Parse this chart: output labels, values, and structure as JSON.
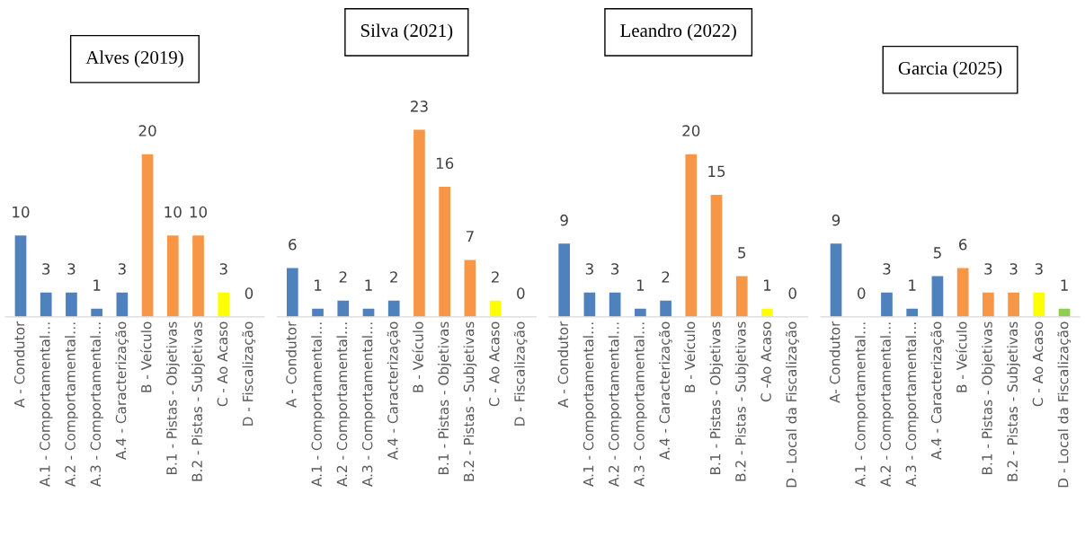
{
  "chart_data": [
    {
      "type": "bar",
      "title": "Alves (2019)",
      "categories": [
        "A - Condutor",
        "A.1 - Comportamental…",
        "A.2 - Comportamental…",
        "A.3 - Comportamental…",
        "A.4 - Caracterização",
        "B - Veículo",
        "B.1 - Pistas - Objetivas",
        "B.2 - Pistas - Subjetivas",
        "C - Ao Acaso",
        "D - Fiscalização"
      ],
      "values": [
        10,
        3,
        3,
        1,
        3,
        20,
        10,
        10,
        3,
        0
      ],
      "colors": [
        "#4f81bd",
        "#4f81bd",
        "#4f81bd",
        "#4f81bd",
        "#4f81bd",
        "#f79646",
        "#f79646",
        "#f79646",
        "#ffff00",
        "#8fce4f"
      ],
      "data_labels": true,
      "tick_labels": "x",
      "grid": false,
      "legend": false
    },
    {
      "type": "bar",
      "title": "Silva (2021)",
      "categories": [
        "A - Condutor",
        "A.1 - Comportamental…",
        "A.2 - Comportamental…",
        "A.3 - Comportamental…",
        "A.4 - Caracterização",
        "B - Veículo",
        "B.1 - Pistas - Objetivas",
        "B.2 - Pistas - Subjetivas",
        "C - Ao Acaso",
        "D - Fiscalização"
      ],
      "values": [
        6,
        1,
        2,
        1,
        2,
        23,
        16,
        7,
        2,
        0
      ],
      "colors": [
        "#4f81bd",
        "#4f81bd",
        "#4f81bd",
        "#4f81bd",
        "#4f81bd",
        "#f79646",
        "#f79646",
        "#f79646",
        "#ffff00",
        "#8fce4f"
      ],
      "data_labels": true,
      "tick_labels": "x",
      "grid": false,
      "legend": false
    },
    {
      "type": "bar",
      "title": "Leandro (2022)",
      "categories": [
        "A - Condutor",
        "A.1 - Comportamental…",
        "A.2 - Comportamental…",
        "A.3 - Comportamental…",
        "A.4 - Caracterização",
        "B - Veículo",
        "B.1 - Pistas - Objetivas",
        "B.2 - Pistas - Subjetivas",
        "C -Ao Acaso",
        "D - Local da Fiscalização"
      ],
      "values": [
        9,
        3,
        3,
        1,
        2,
        20,
        15,
        5,
        1,
        0
      ],
      "colors": [
        "#4f81bd",
        "#4f81bd",
        "#4f81bd",
        "#4f81bd",
        "#4f81bd",
        "#f79646",
        "#f79646",
        "#f79646",
        "#ffff00",
        "#8fce4f"
      ],
      "data_labels": true,
      "tick_labels": "x",
      "grid": false,
      "legend": false
    },
    {
      "type": "bar",
      "title": "Garcia (2025)",
      "categories": [
        "A- Condutor",
        "A.1 - Comportamental…",
        "A.2 - Comportamental…",
        "A.3 - Comportamental…",
        "A.4 - Caracterização",
        "B - Veículo",
        "B.1 - Pistas - Objetivas",
        "B.2 - Pistas - Subjetivas",
        "C - Ao Acaso",
        "D - Local da Fiscalização"
      ],
      "values": [
        9,
        0,
        3,
        1,
        5,
        6,
        3,
        3,
        3,
        1
      ],
      "colors": [
        "#4f81bd",
        "#4f81bd",
        "#4f81bd",
        "#4f81bd",
        "#4f81bd",
        "#f79646",
        "#f79646",
        "#f79646",
        "#ffff00",
        "#8fce4f"
      ],
      "data_labels": true,
      "tick_labels": "x",
      "grid": false,
      "legend": false
    }
  ]
}
